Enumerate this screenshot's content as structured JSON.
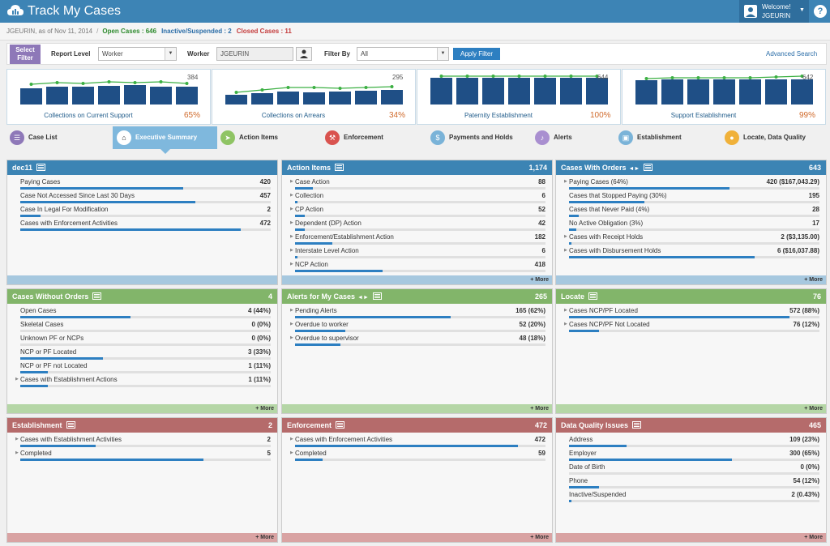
{
  "app": {
    "title": "Track My Cases",
    "welcome": "Welcome!",
    "user": "JGEURIN",
    "help": "?"
  },
  "status": {
    "as_of": "JGEURIN, as of Nov 11, 2014",
    "sep": "/",
    "open": "Open Cases : 646",
    "inactive": "Inactive/Suspended : 2",
    "closed": "Closed Cases : 11"
  },
  "filters": {
    "select_filter": "Select Filter",
    "report_level_label": "Report Level",
    "report_level_value": "Worker",
    "worker_label": "Worker",
    "worker_value": "JGEURIN",
    "filter_by_label": "Filter By",
    "filter_by_value": "All",
    "apply": "Apply Filter",
    "advanced": "Advanced Search"
  },
  "widgets": [
    {
      "label": "Collections on Current Support",
      "value": "384",
      "pct": "65%"
    },
    {
      "label": "Collections on Arrears",
      "value": "295",
      "pct": "34%"
    },
    {
      "label": "Paternity Establishment",
      "value": "644",
      "pct": "100%"
    },
    {
      "label": "Support Establishment",
      "value": "642",
      "pct": "99%"
    }
  ],
  "tabs": [
    {
      "label": "Case List",
      "icon": "list-icon"
    },
    {
      "label": "Executive Summary",
      "icon": "home-icon"
    },
    {
      "label": "Action Items",
      "icon": "send-icon"
    },
    {
      "label": "Enforcement",
      "icon": "gavel-icon"
    },
    {
      "label": "Payments and Holds",
      "icon": "money-icon"
    },
    {
      "label": "Alerts",
      "icon": "bell-icon"
    },
    {
      "label": "Establishment",
      "icon": "briefcase-icon"
    },
    {
      "label": "Locate, Data Quality",
      "icon": "location-icon"
    }
  ],
  "colors": {
    "blue": "#3c84b4",
    "green": "#82b56a",
    "red": "#b56b6b",
    "bar": "#2d7fc1",
    "chart_bar": "#1f4f86",
    "chart_line": "#3cb043"
  },
  "panels": [
    {
      "title": "dec11",
      "count": "",
      "more": "",
      "rows": [
        {
          "label": "Paying Cases",
          "value": "420",
          "fill": 0.65,
          "arrow": false
        },
        {
          "label": "Case Not Accessed Since Last 30 Days",
          "value": "457",
          "fill": 0.7,
          "arrow": false
        },
        {
          "label": "Case In Legal For Modification",
          "value": "2",
          "fill": 0.08,
          "arrow": false
        },
        {
          "label": "Cases with Enforcement Activities",
          "value": "472",
          "fill": 0.88,
          "arrow": false
        }
      ]
    },
    {
      "title": "Action Items",
      "count": "1,174",
      "more": "+ More",
      "rows": [
        {
          "label": "Case Action",
          "value": "88",
          "fill": 0.07,
          "arrow": true
        },
        {
          "label": "Collection",
          "value": "6",
          "fill": 0.01,
          "arrow": true
        },
        {
          "label": "CP Action",
          "value": "52",
          "fill": 0.04,
          "arrow": true
        },
        {
          "label": "Dependent (DP) Action",
          "value": "42",
          "fill": 0.04,
          "arrow": true
        },
        {
          "label": "Enforcement/Establishment Action",
          "value": "182",
          "fill": 0.15,
          "arrow": true
        },
        {
          "label": "Interstate Level Action",
          "value": "6",
          "fill": 0.01,
          "arrow": true
        },
        {
          "label": "NCP Action",
          "value": "418",
          "fill": 0.35,
          "arrow": true
        }
      ]
    },
    {
      "title": "Cases With Orders",
      "count": "643",
      "more": "+ More",
      "nav": true,
      "rows": [
        {
          "label": "Paying Cases (64%)",
          "value": "420 ($167,043.29)",
          "fill": 0.64,
          "arrow": true
        },
        {
          "label": "Cases that Stopped Paying (30%)",
          "value": "195",
          "fill": 0.3,
          "arrow": false
        },
        {
          "label": "Cases that Never Paid (4%)",
          "value": "28",
          "fill": 0.04,
          "arrow": false
        },
        {
          "label": "No Active Obligation (3%)",
          "value": "17",
          "fill": 0.03,
          "arrow": false
        },
        {
          "label": "Cases with Receipt Holds",
          "value": "2 ($3,135.00)",
          "fill": 0.01,
          "arrow": true
        },
        {
          "label": "Cases with Disbursement Holds",
          "value": "6 ($16,037.88)",
          "fill": 0.74,
          "arrow": true
        }
      ]
    },
    {
      "title": "Cases Without Orders",
      "count": "4",
      "more": "+ More",
      "rows": [
        {
          "label": "Open Cases",
          "value": "4 (44%)",
          "fill": 0.44,
          "arrow": false
        },
        {
          "label": "Skeletal Cases",
          "value": "0 (0%)",
          "fill": 0,
          "arrow": false
        },
        {
          "label": "Unknown PF or NCPs",
          "value": "0 (0%)",
          "fill": 0,
          "arrow": false
        },
        {
          "label": "NCP or PF Located",
          "value": "3 (33%)",
          "fill": 0.33,
          "arrow": false
        },
        {
          "label": "NCP or PF not Located",
          "value": "1 (11%)",
          "fill": 0.11,
          "arrow": false
        },
        {
          "label": "Cases with Establishment Actions",
          "value": "1 (11%)",
          "fill": 0.11,
          "arrow": true
        }
      ]
    },
    {
      "title": "Alerts for My Cases",
      "count": "265",
      "more": "+ More",
      "nav": true,
      "rows": [
        {
          "label": "Pending Alerts",
          "value": "165 (62%)",
          "fill": 0.62,
          "arrow": true
        },
        {
          "label": "Overdue to worker",
          "value": "52 (20%)",
          "fill": 0.2,
          "arrow": true
        },
        {
          "label": "Overdue to supervisor",
          "value": "48 (18%)",
          "fill": 0.18,
          "arrow": true
        }
      ]
    },
    {
      "title": "Locate",
      "count": "76",
      "more": "+ More",
      "rows": [
        {
          "label": "Cases NCP/PF Located",
          "value": "572 (88%)",
          "fill": 0.88,
          "arrow": true
        },
        {
          "label": "Cases NCP/PF Not Located",
          "value": "76 (12%)",
          "fill": 0.12,
          "arrow": true
        }
      ]
    },
    {
      "title": "Establishment",
      "count": "2",
      "more": "+ More",
      "rows": [
        {
          "label": "Cases with Establishment Activities",
          "value": "2",
          "fill": 0.3,
          "arrow": true
        },
        {
          "label": "Completed",
          "value": "5",
          "fill": 0.73,
          "arrow": true
        }
      ]
    },
    {
      "title": "Enforcement",
      "count": "472",
      "more": "+ More",
      "rows": [
        {
          "label": "Cases with Enforcement Activities",
          "value": "472",
          "fill": 0.89,
          "arrow": true
        },
        {
          "label": "Completed",
          "value": "59",
          "fill": 0.11,
          "arrow": true
        }
      ]
    },
    {
      "title": "Data Quality Issues",
      "count": "465",
      "more": "+ More",
      "rows": [
        {
          "label": "Address",
          "value": "109 (23%)",
          "fill": 0.23,
          "arrow": false
        },
        {
          "label": "Employer",
          "value": "300 (65%)",
          "fill": 0.65,
          "arrow": false
        },
        {
          "label": "Date of Birth",
          "value": "0 (0%)",
          "fill": 0,
          "arrow": false
        },
        {
          "label": "Phone",
          "value": "54 (12%)",
          "fill": 0.12,
          "arrow": false
        },
        {
          "label": "Inactive/Suspended",
          "value": "2 (0.43%)",
          "fill": 0.01,
          "arrow": false
        }
      ]
    }
  ]
}
